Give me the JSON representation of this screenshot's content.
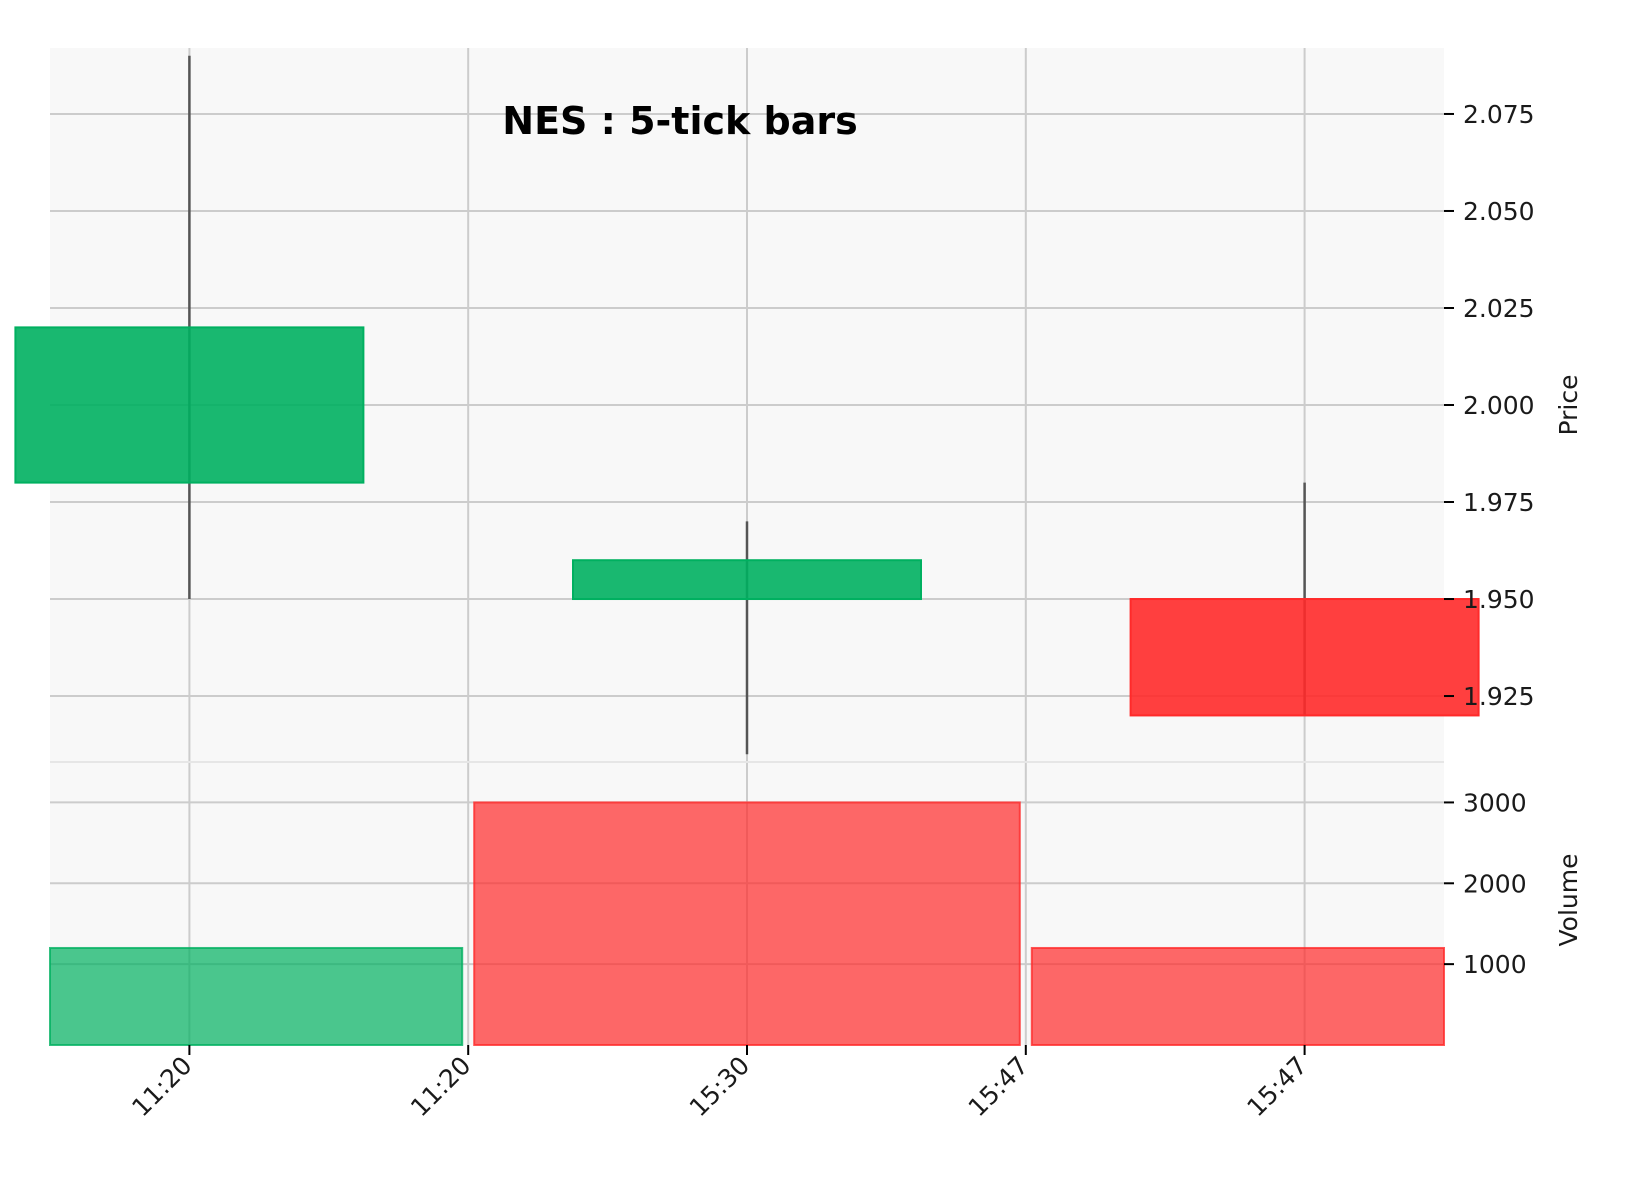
{
  "chart_data": {
    "type": "candlestick",
    "title": "NES : 5-tick bars",
    "colors": {
      "up": "#00b060",
      "down": "#ff2a2a",
      "wick": "#555555",
      "background": "#f8f8f8",
      "grid": "#cccccc"
    },
    "x_tick_labels": [
      "11:20",
      "11:20",
      "15:30",
      "15:47",
      "15:47"
    ],
    "candles": [
      {
        "open": 1.98,
        "high": 2.09,
        "low": 1.95,
        "close": 2.02
      },
      {
        "open": 1.95,
        "high": 1.97,
        "low": 1.91,
        "close": 1.96
      },
      {
        "open": 1.95,
        "high": 1.98,
        "low": 1.92,
        "close": 1.92
      }
    ],
    "volume_bars": [
      {
        "value": 1200,
        "direction": "up"
      },
      {
        "value": 3000,
        "direction": "down"
      },
      {
        "value": 1200,
        "direction": "down"
      }
    ],
    "price_axis": {
      "label": "Price",
      "ticks": [
        "1.925",
        "1.950",
        "1.975",
        "2.000",
        "2.025",
        "2.050",
        "2.075"
      ],
      "ylim": [
        1.908,
        2.092
      ]
    },
    "volume_axis": {
      "label": "Volume",
      "ticks": [
        "1000",
        "2000",
        "3000"
      ],
      "ylim": [
        0,
        3500
      ]
    },
    "grid": true
  }
}
